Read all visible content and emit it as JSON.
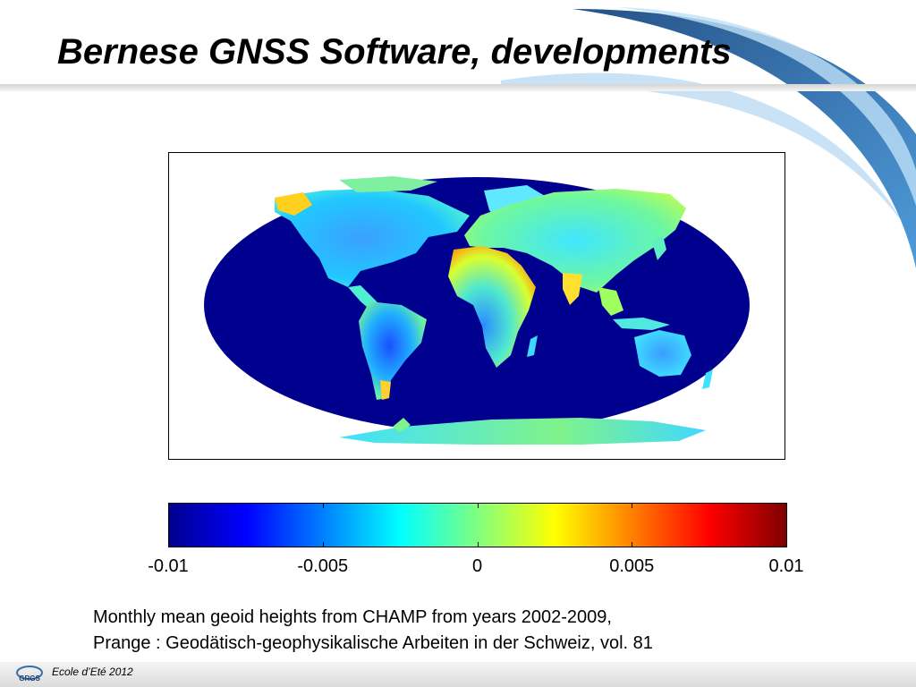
{
  "slide": {
    "title": "Bernese GNSS Software, developments",
    "caption": {
      "line1": "Monthly mean geoid heights from CHAMP from years 2002-2009,",
      "line2": "Prange : Geodätisch-geophysikalische Arbeiten in der Schweiz, vol. 81"
    },
    "footer": {
      "text": "Ecole d’Eté 2012",
      "logo_text": "GRGS"
    }
  },
  "colors": {
    "ocean": "#00008f",
    "swoosh_dark": "#0d3f7a",
    "swoosh_light": "#3b8fd6",
    "colormap": [
      "#00008f",
      "#0000ff",
      "#0080ff",
      "#00ffff",
      "#80ff80",
      "#ffff00",
      "#ff8000",
      "#ff0000",
      "#800000"
    ]
  },
  "map": {
    "projection": "robinson",
    "colorbar": {
      "min": -0.01,
      "max": 0.01,
      "ticks": [
        {
          "value": -0.01,
          "label": "-0.01"
        },
        {
          "value": -0.005,
          "label": "-0.005"
        },
        {
          "value": 0,
          "label": "0"
        },
        {
          "value": 0.005,
          "label": "0.005"
        },
        {
          "value": 0.01,
          "label": "0.01"
        }
      ]
    }
  }
}
